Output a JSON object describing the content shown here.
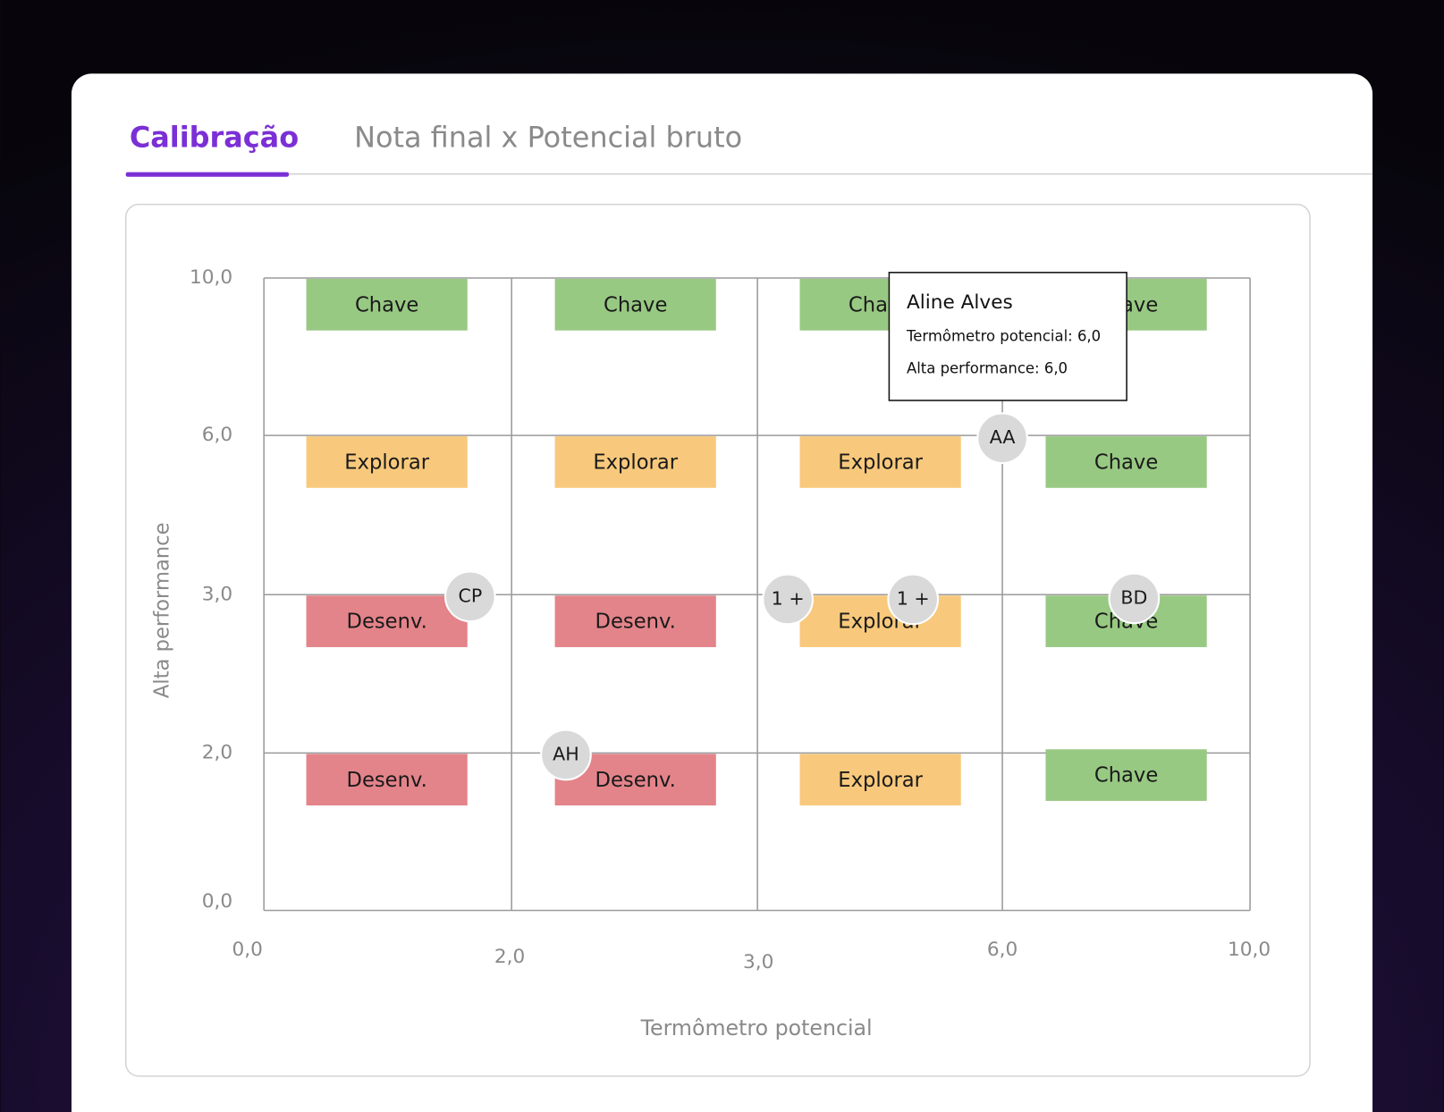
{
  "tabs": [
    {
      "label": "Calibração",
      "active": true
    },
    {
      "label": "Nota final x Potencial bruto",
      "active": false
    }
  ],
  "grid": {
    "y_axis_title": "Alta performance",
    "x_axis_title": "Termômetro potencial",
    "y_ticks": [
      "10,0",
      "6,0",
      "3,0",
      "2,0",
      "0,0"
    ],
    "x_ticks": [
      "0,0",
      "2,0",
      "3,0",
      "6,0",
      "10,0"
    ],
    "rows": [
      [
        {
          "label": "Chave",
          "color": "#98c983"
        },
        {
          "label": "Chave",
          "color": "#98c983"
        },
        {
          "label": "Chave",
          "color": "#98c983"
        },
        {
          "label": "Chave",
          "color": "#98c983"
        }
      ],
      [
        {
          "label": "Explorar",
          "color": "#f8c97c"
        },
        {
          "label": "Explorar",
          "color": "#f8c97c"
        },
        {
          "label": "Explorar",
          "color": "#f8c97c"
        },
        {
          "label": "Chave",
          "color": "#98c983"
        }
      ],
      [
        {
          "label": "Desenv.",
          "color": "#e3848a"
        },
        {
          "label": "Desenv.",
          "color": "#e3848a"
        },
        {
          "label": "Explorar",
          "color": "#f8c97c"
        },
        {
          "label": "Chave",
          "color": "#98c983"
        }
      ],
      [
        {
          "label": "Desenv.",
          "color": "#e3848a"
        },
        {
          "label": "Desenv.",
          "color": "#e3848a"
        },
        {
          "label": "Explorar",
          "color": "#f8c97c"
        },
        {
          "label": "Chave",
          "color": "#98c983"
        }
      ]
    ],
    "people": [
      "CP",
      "AH",
      "1 +",
      "1 +",
      "AA",
      "BD"
    ]
  },
  "tooltip": {
    "name": "Aline Alves",
    "lines": [
      "Termômetro potencial: 6,0",
      "Alta performance: 6,0"
    ]
  }
}
